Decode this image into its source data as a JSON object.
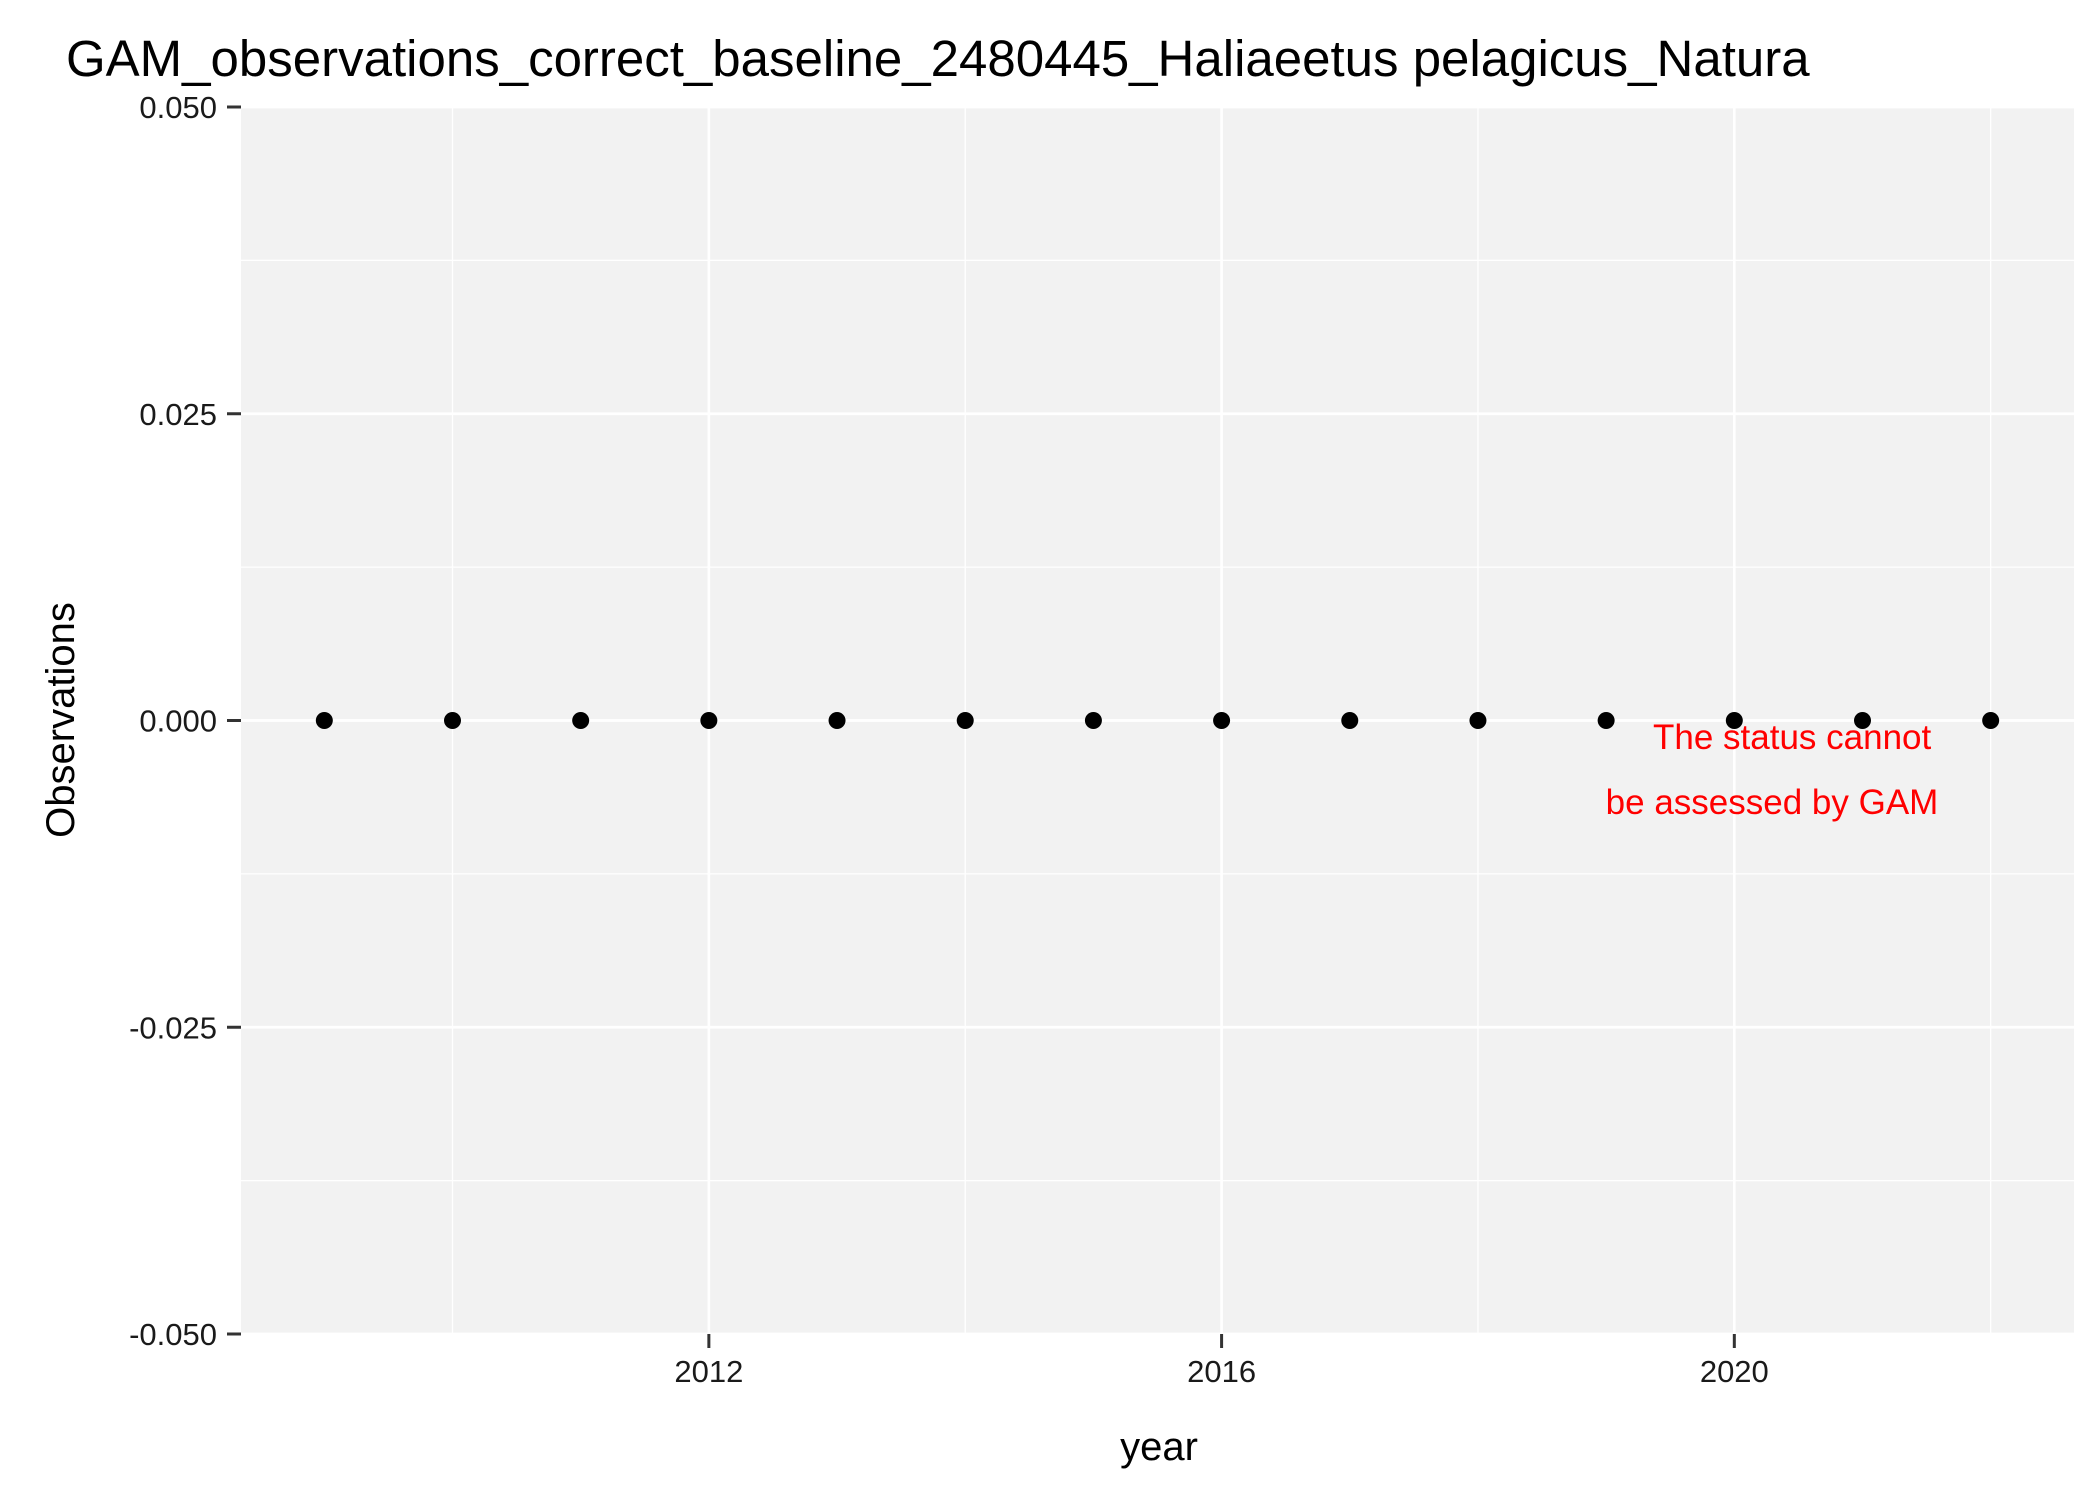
{
  "chart_data": {
    "type": "scatter",
    "title": "GAM_observations_correct_baseline_2480445_Haliaeetus pelagicus_Natura",
    "xlabel": "year",
    "ylabel": "Observations",
    "xlim": [
      2008.35,
      2022.65
    ],
    "ylim": [
      -0.05,
      0.05
    ],
    "x_ticks": [
      2012,
      2016,
      2020
    ],
    "x_minor_ticks": [
      2010,
      2014,
      2018,
      2022
    ],
    "y_ticks": [
      -0.05,
      -0.025,
      0,
      0.025,
      0.05
    ],
    "y_tick_labels": [
      "-0.050",
      "-0.025",
      "0.000",
      "0.025",
      "0.050"
    ],
    "y_minor_ticks": [
      -0.0375,
      -0.0125,
      0.0125,
      0.0375
    ],
    "grid": true,
    "panel_background": "#f2f2f2",
    "grid_color": "#ffffff",
    "point_color": "#000000",
    "x": [
      2009,
      2010,
      2011,
      2012,
      2013,
      2014,
      2015,
      2016,
      2017,
      2018,
      2019,
      2020,
      2021,
      2022
    ],
    "y": [
      0,
      0,
      0,
      0,
      0,
      0,
      0,
      0,
      0,
      0,
      0,
      0,
      0,
      0
    ],
    "annotation": {
      "lines": [
        "The status cannot",
        "be assessed by GAM"
      ],
      "color": "#ff0000"
    }
  }
}
